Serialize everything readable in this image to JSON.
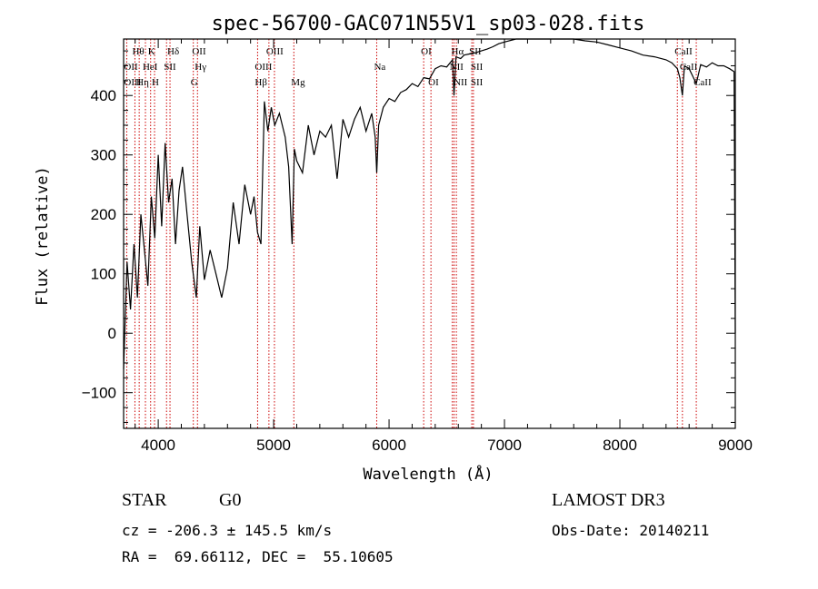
{
  "chart_data": {
    "type": "line",
    "title": "spec-56700-GAC071N55V1_sp03-028.fits",
    "xlabel": "Wavelength (Å)",
    "ylabel": "Flux (relative)",
    "xlim": [
      3700,
      9000
    ],
    "ylim": [
      -160,
      495
    ],
    "xticks": [
      4000,
      5000,
      6000,
      7000,
      8000,
      9000
    ],
    "yticks": [
      -100,
      0,
      100,
      200,
      300,
      400
    ],
    "series": [
      {
        "name": "spectrum",
        "x": [
          3700,
          3730,
          3760,
          3790,
          3820,
          3850,
          3880,
          3910,
          3940,
          3970,
          4000,
          4030,
          4060,
          4090,
          4120,
          4150,
          4180,
          4210,
          4250,
          4290,
          4330,
          4360,
          4400,
          4450,
          4500,
          4550,
          4600,
          4650,
          4700,
          4750,
          4800,
          4830,
          4860,
          4890,
          4920,
          4950,
          4980,
          5010,
          5050,
          5100,
          5130,
          5160,
          5180,
          5200,
          5250,
          5300,
          5350,
          5400,
          5450,
          5500,
          5550,
          5600,
          5650,
          5700,
          5750,
          5800,
          5850,
          5880,
          5893,
          5910,
          5950,
          6000,
          6050,
          6100,
          6150,
          6200,
          6250,
          6300,
          6350,
          6400,
          6450,
          6500,
          6550,
          6563,
          6580,
          6620,
          6650,
          6700,
          6750,
          6800,
          6850,
          6900,
          6950,
          7000,
          7100,
          7200,
          7300,
          7400,
          7500,
          7600,
          7700,
          7800,
          7900,
          8000,
          8100,
          8200,
          8300,
          8400,
          8450,
          8498,
          8520,
          8542,
          8560,
          8600,
          8662,
          8700,
          8750,
          8800,
          8850,
          8900,
          8950,
          8990,
          9000
        ],
        "y": [
          -60,
          120,
          40,
          150,
          60,
          200,
          140,
          80,
          230,
          160,
          300,
          180,
          320,
          220,
          260,
          150,
          240,
          280,
          200,
          120,
          60,
          180,
          90,
          140,
          100,
          60,
          110,
          220,
          150,
          250,
          200,
          230,
          170,
          150,
          390,
          340,
          380,
          350,
          370,
          330,
          280,
          150,
          310,
          290,
          270,
          350,
          300,
          340,
          330,
          350,
          260,
          360,
          330,
          360,
          380,
          340,
          370,
          330,
          270,
          350,
          380,
          395,
          390,
          405,
          410,
          420,
          415,
          430,
          428,
          445,
          450,
          448,
          460,
          400,
          465,
          462,
          468,
          470,
          472,
          475,
          478,
          482,
          487,
          490,
          495,
          497,
          500,
          502,
          498,
          495,
          492,
          490,
          485,
          480,
          475,
          468,
          465,
          460,
          455,
          445,
          430,
          400,
          450,
          445,
          420,
          452,
          448,
          455,
          450,
          450,
          445,
          440,
          0
        ]
      }
    ],
    "line_ids": [
      {
        "label": "Hθ",
        "wave": 3798,
        "row": 0
      },
      {
        "label": "K",
        "wave": 3934,
        "row": 0
      },
      {
        "label": "Hδ",
        "wave": 4102,
        "row": 0
      },
      {
        "label": "OII",
        "wave": 4317,
        "row": 0
      },
      {
        "label": "OIII",
        "wave": 4959,
        "row": 0
      },
      {
        "label": "OI",
        "wave": 6300,
        "row": 0
      },
      {
        "label": "Hα",
        "wave": 6563,
        "row": 0
      },
      {
        "label": "SII",
        "wave": 6717,
        "row": 0
      },
      {
        "label": "CaII",
        "wave": 8498,
        "row": 0
      },
      {
        "label": "OII",
        "wave": 3727,
        "row": 1
      },
      {
        "label": "HeI",
        "wave": 3889,
        "row": 1
      },
      {
        "label": "SII",
        "wave": 4072,
        "row": 1
      },
      {
        "label": "Hγ",
        "wave": 4340,
        "row": 1
      },
      {
        "label": "OIII",
        "wave": 4861,
        "row": 1
      },
      {
        "label": "Na",
        "wave": 5893,
        "row": 1
      },
      {
        "label": "NII",
        "wave": 6548,
        "row": 1
      },
      {
        "label": "SII",
        "wave": 6731,
        "row": 1
      },
      {
        "label": "CaII",
        "wave": 8542,
        "row": 1
      },
      {
        "label": "OIII",
        "wave": 3727,
        "row": 2
      },
      {
        "label": "Hη",
        "wave": 3835,
        "row": 2
      },
      {
        "label": "H",
        "wave": 3968,
        "row": 2
      },
      {
        "label": "G",
        "wave": 4304,
        "row": 2
      },
      {
        "label": "Hβ",
        "wave": 4861,
        "row": 2
      },
      {
        "label": "Mg",
        "wave": 5175,
        "row": 2
      },
      {
        "label": "OI",
        "wave": 6363,
        "row": 2
      },
      {
        "label": "NII",
        "wave": 6583,
        "row": 2
      },
      {
        "label": "SII",
        "wave": 6731,
        "row": 2
      },
      {
        "label": "CaII",
        "wave": 8662,
        "row": 2
      }
    ],
    "vlines": [
      3727,
      3798,
      3835,
      3889,
      3934,
      3968,
      4072,
      4102,
      4304,
      4340,
      4861,
      4959,
      5007,
      5175,
      5893,
      6300,
      6363,
      6548,
      6563,
      6583,
      6717,
      6731,
      8498,
      8542,
      8662
    ],
    "line_color": "#000000",
    "vline_color": "#cc0000"
  },
  "info": {
    "object_type": "STAR",
    "subclass": "G0",
    "survey": "LAMOST DR3",
    "cz": "cz = -206.3 ± 145.5 km/s",
    "obs_date": "Obs-Date: 20140211",
    "radec": "RA =  69.66112, DEC =  55.10605"
  }
}
